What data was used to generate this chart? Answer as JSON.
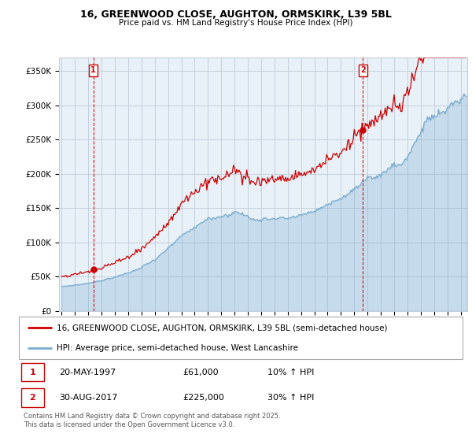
{
  "title1": "16, GREENWOOD CLOSE, AUGHTON, ORMSKIRK, L39 5BL",
  "title2": "Price paid vs. HM Land Registry's House Price Index (HPI)",
  "ylabel_ticks": [
    "£350K",
    "£300K",
    "£250K",
    "£200K",
    "£150K",
    "£100K",
    "£50K",
    "£0"
  ],
  "ytick_vals": [
    350000,
    300000,
    250000,
    200000,
    150000,
    100000,
    50000,
    0
  ],
  "ylim": [
    0,
    370000
  ],
  "legend_line1": "16, GREENWOOD CLOSE, AUGHTON, ORMSKIRK, L39 5BL (semi-detached house)",
  "legend_line2": "HPI: Average price, semi-detached house, West Lancashire",
  "sale1_label": "1",
  "sale1_date": "20-MAY-1997",
  "sale1_price": "£61,000",
  "sale1_hpi": "10% ↑ HPI",
  "sale2_label": "2",
  "sale2_date": "30-AUG-2017",
  "sale2_price": "£225,000",
  "sale2_hpi": "30% ↑ HPI",
  "copyright": "Contains HM Land Registry data © Crown copyright and database right 2025.\nThis data is licensed under the Open Government Licence v3.0.",
  "line_color_property": "#cc0000",
  "line_color_hpi": "#7aadcf",
  "fill_color_hpi": "#ddeeff",
  "marker_vline_color": "#cc0000",
  "background_color": "#ffffff",
  "chart_bg_color": "#e8f0f8",
  "grid_color": "#c0ccd8",
  "sale1_x_year": 1997.38,
  "sale2_x_year": 2017.66,
  "xlim_left": 1994.8,
  "xlim_right": 2025.5
}
